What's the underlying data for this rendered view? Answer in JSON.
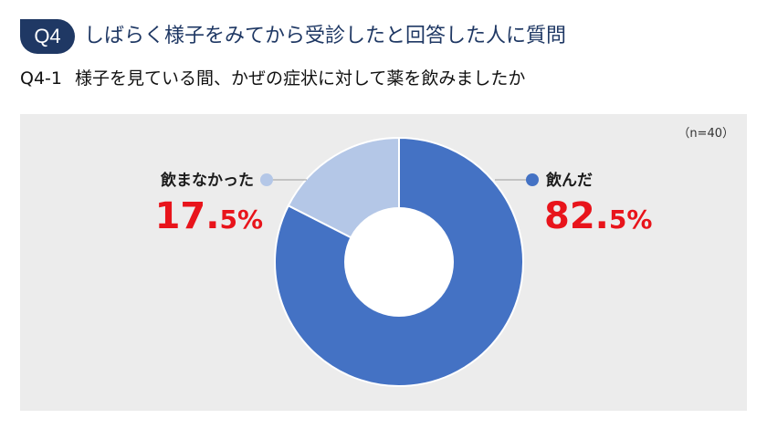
{
  "header": {
    "badge": "Q4",
    "title": "しばらく様子をみてから受診したと回答した人に質問",
    "sub_number": "Q4-1",
    "sub_title": "様子を見ている間、かぜの症状に対して薬を飲みましたか"
  },
  "note": "（n=40）",
  "colors": {
    "title_navy": "#1f3864",
    "drank": "#4472c4",
    "not_drank": "#b4c7e7",
    "percent_red": "#e8141b",
    "panel_bg": "#ececec"
  },
  "chart_data": {
    "type": "pie",
    "title": "",
    "donut": true,
    "categories": [
      "飲んだ",
      "飲まなかった"
    ],
    "values": [
      82.5,
      17.5
    ],
    "unit": "%",
    "labels": [
      {
        "name": "飲んだ",
        "pct_int": "82.",
        "pct_dec": "5",
        "pct_unit": "%"
      },
      {
        "name": "飲まなかった",
        "pct_int": "17.",
        "pct_dec": "5",
        "pct_unit": "%"
      }
    ],
    "colors": [
      "#4472c4",
      "#b4c7e7"
    ],
    "start": "12 o'clock",
    "direction": "clockwise",
    "legend": "none"
  }
}
